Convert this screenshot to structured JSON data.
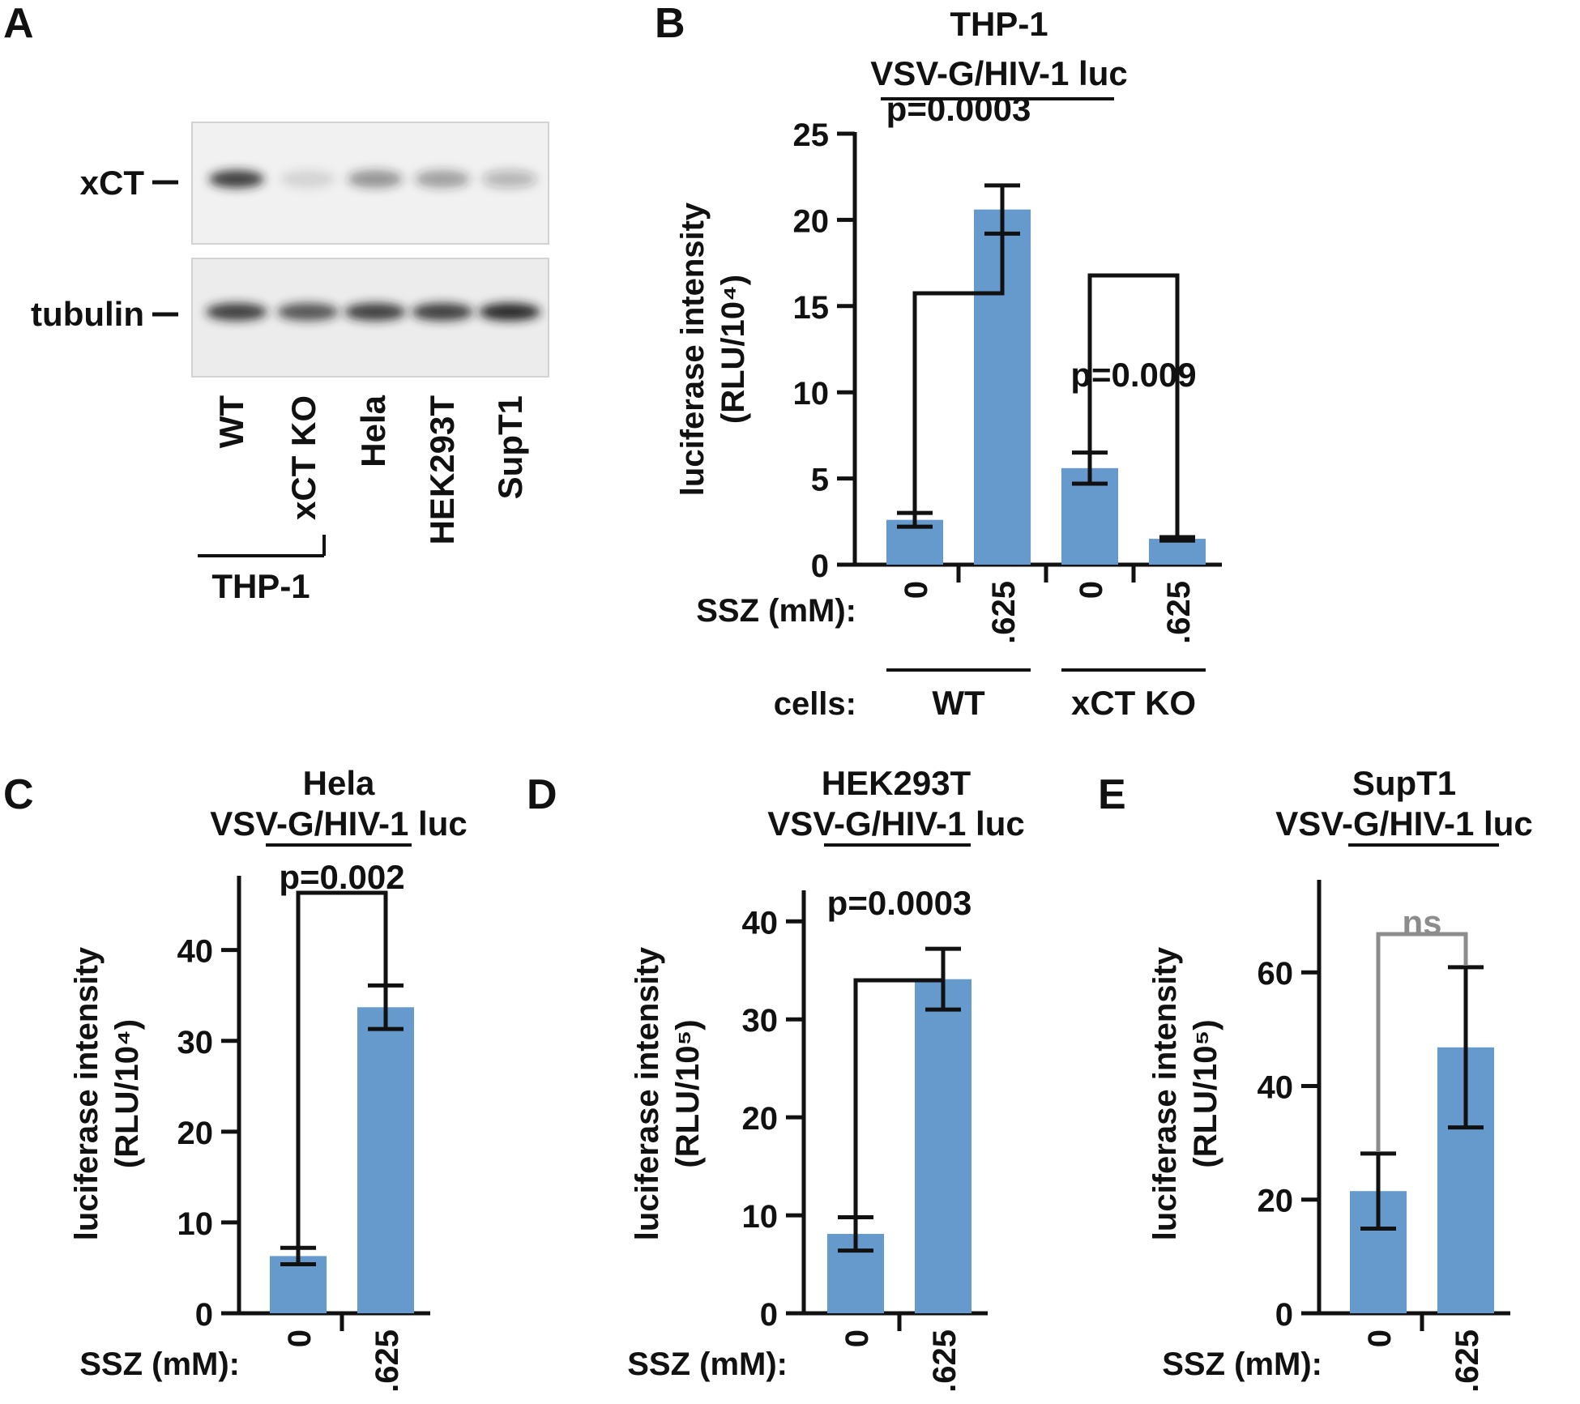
{
  "colors": {
    "bar": "#6699cc",
    "ink": "#111111",
    "ns": "#8c8c8c"
  },
  "panel_a": {
    "letter": "A",
    "rows": [
      "xCT",
      "tubulin"
    ],
    "lanes": [
      "WT",
      "xCT KO",
      "Hela",
      "HEK293T",
      "SupT1"
    ],
    "group_label": "THP-1",
    "bands": {
      "xCT": [
        0.85,
        0.12,
        0.45,
        0.4,
        0.28
      ],
      "tubulin": [
        0.85,
        0.75,
        0.85,
        0.85,
        0.95
      ]
    }
  },
  "chart_data": [
    {
      "panel": "B",
      "type": "bar",
      "title": [
        "THP-1",
        "VSV-G/HIV-1 luc"
      ],
      "ylabel": [
        "luciferase intensity",
        "(RLU/10⁴)"
      ],
      "xprefix": "SSZ (mM):",
      "categories": [
        "0",
        ".625",
        "0",
        ".625"
      ],
      "values": [
        2.6,
        20.6,
        5.6,
        1.5
      ],
      "errors": [
        0.4,
        1.4,
        0.9,
        0.1
      ],
      "ylim": [
        0,
        25
      ],
      "yticks": [
        0,
        5,
        10,
        15,
        20,
        25
      ],
      "cells_label": "cells:",
      "cell_groups": [
        "WT",
        "xCT KO"
      ],
      "comparisons": [
        {
          "a": 0,
          "b": 1,
          "label": "p=0.0003",
          "style": "ink"
        },
        {
          "a": 2,
          "b": 3,
          "label": "p=0.009",
          "style": "ink"
        }
      ]
    },
    {
      "panel": "C",
      "type": "bar",
      "title": [
        "Hela",
        "VSV-G/HIV-1 luc"
      ],
      "ylabel": [
        "luciferase intensity",
        "(RLU/10⁴)"
      ],
      "xprefix": "SSZ (mM):",
      "categories": [
        "0",
        ".625"
      ],
      "values": [
        6.3,
        33.7
      ],
      "errors": [
        0.9,
        2.4
      ],
      "ylim": [
        0,
        48
      ],
      "yticks": [
        0,
        10,
        20,
        30,
        40
      ],
      "comparisons": [
        {
          "a": 0,
          "b": 1,
          "label": "p=0.002",
          "style": "ink"
        }
      ]
    },
    {
      "panel": "D",
      "type": "bar",
      "title": [
        "HEK293T",
        "VSV-G/HIV-1 luc"
      ],
      "ylabel": [
        "luciferase intensity",
        "(RLU/10⁵)"
      ],
      "xprefix": "SSZ (mM):",
      "categories": [
        "0",
        ".625"
      ],
      "values": [
        8.1,
        34.1
      ],
      "errors": [
        1.7,
        3.1
      ],
      "ylim": [
        0,
        43
      ],
      "yticks": [
        0,
        10,
        20,
        30,
        40
      ],
      "comparisons": [
        {
          "a": 0,
          "b": 1,
          "label": "p=0.0003",
          "style": "ink"
        }
      ]
    },
    {
      "panel": "E",
      "type": "bar",
      "title": [
        "SupT1",
        "VSV-G/HIV-1 luc"
      ],
      "ylabel": [
        "luciferase intensity",
        "(RLU/10⁵)"
      ],
      "xprefix": "SSZ (mM):",
      "categories": [
        "0",
        ".625"
      ],
      "values": [
        21.5,
        46.8
      ],
      "errors": [
        6.6,
        14.1
      ],
      "ylim": [
        0,
        76
      ],
      "yticks": [
        0,
        20,
        40,
        60
      ],
      "comparisons": [
        {
          "a": 0,
          "b": 1,
          "label": "ns",
          "style": "ns"
        }
      ]
    }
  ]
}
